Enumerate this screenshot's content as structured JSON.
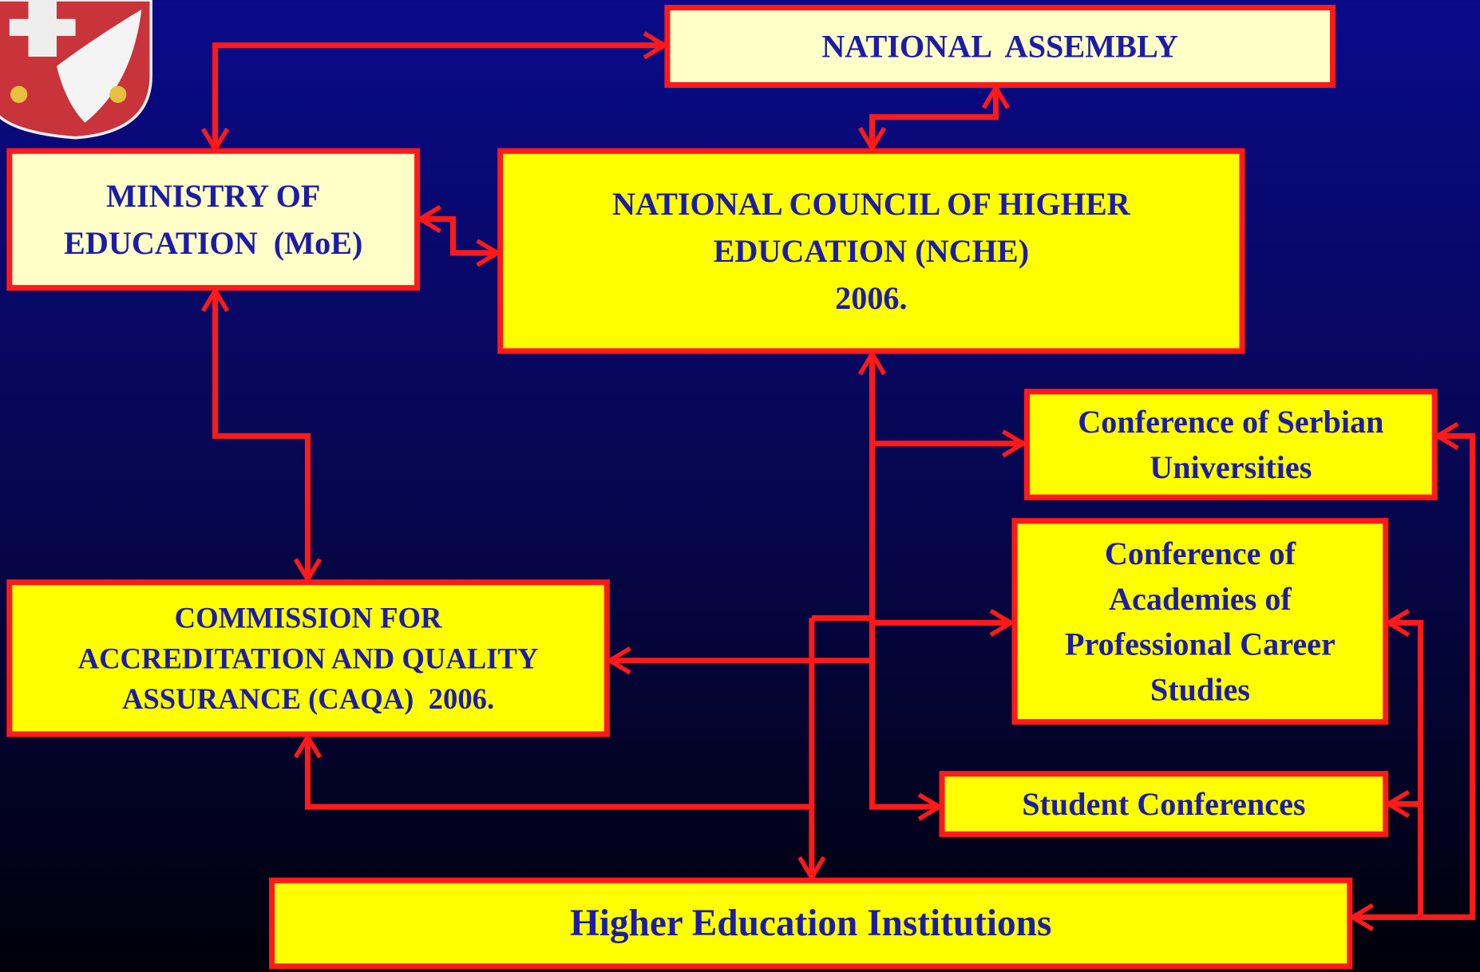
{
  "nodes": [
    {
      "label": [
        "NATIONAL  ASSEMBLY"
      ]
    },
    {
      "label": [
        "MINISTRY OF",
        "EDUCATION  (MoE)"
      ]
    },
    {
      "label": [
        "NATIONAL COUNCIL OF HIGHER",
        "EDUCATION (NCHE)",
        "2006."
      ]
    },
    {
      "label": [
        "Conference of Serbian",
        "Universities"
      ]
    },
    {
      "label": [
        "Conference of",
        "Academies of",
        "Professional Career",
        "Studies"
      ]
    },
    {
      "label": [
        "COMMISSION FOR",
        "ACCREDITATION AND QUALITY",
        "ASSURANCE (CAQA)  2006."
      ]
    },
    {
      "label": [
        "Student Conferences"
      ]
    },
    {
      "label": [
        "Higher Education Institutions"
      ]
    }
  ]
}
